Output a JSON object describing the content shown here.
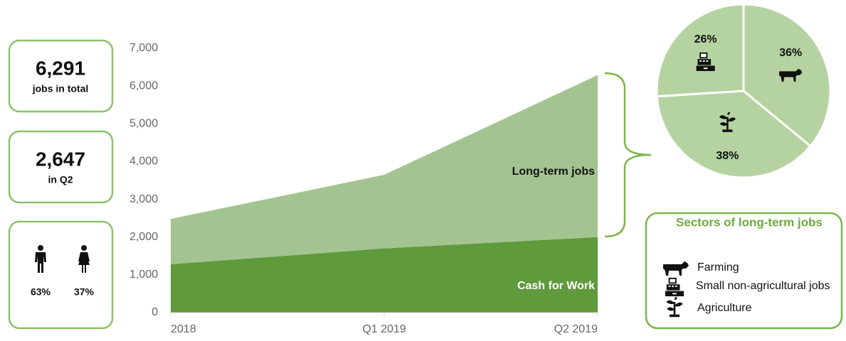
{
  "chart_data": [
    {
      "type": "stacked_area",
      "categories": [
        "2018",
        "Q1 2019",
        "Q2 2019"
      ],
      "series": [
        {
          "name": "Cash for Work",
          "color": "#5f9a3d",
          "values": [
            1280,
            1700,
            2000
          ]
        },
        {
          "name": "Long-term jobs",
          "color": "#a3c490",
          "values": [
            1200,
            1950,
            4291
          ]
        }
      ],
      "ylim": [
        0,
        7000
      ],
      "yticks": [
        0,
        {
          "value": 1000,
          "label": "1,000"
        },
        {
          "value": 2000,
          "label": "2,000"
        },
        {
          "value": 3000,
          "label": "3,000"
        },
        {
          "value": 4000,
          "label": "4,000"
        },
        {
          "value": 5000,
          "label": "5,000"
        },
        {
          "value": 6000,
          "label": "6,000"
        },
        {
          "value": 7000,
          "label": "7,000"
        }
      ]
    },
    {
      "type": "pie",
      "title": "Sectors of long-term jobs",
      "categories": [
        "Farming",
        "Agriculture",
        "Small non-agricultural jobs"
      ],
      "values": [
        36,
        38,
        26
      ],
      "value_labels": [
        "36%",
        "38%",
        "26%"
      ],
      "color": "#b5d3a0"
    }
  ],
  "stats": [
    {
      "value": "6,291",
      "label": "jobs in total"
    },
    {
      "value": "2,647",
      "label": "in Q2"
    }
  ],
  "gender": [
    "63%",
    "37%"
  ]
}
